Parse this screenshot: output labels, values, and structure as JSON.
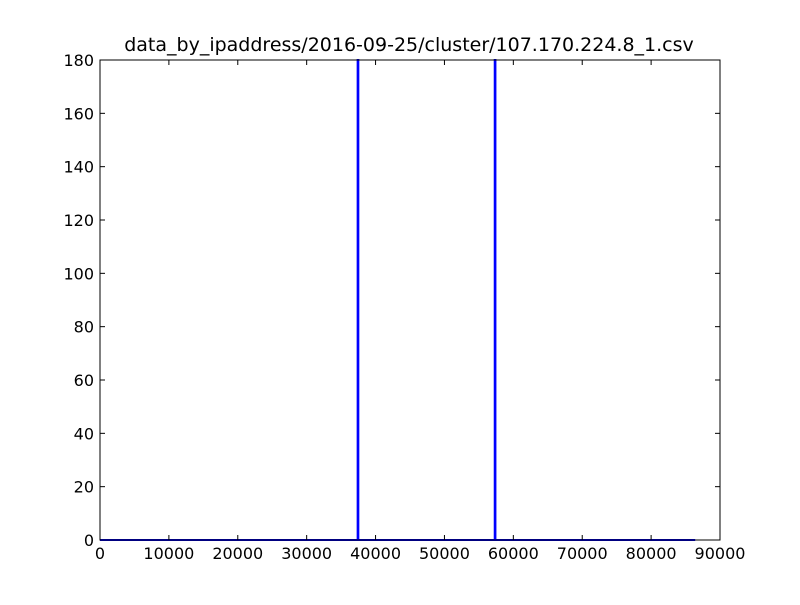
{
  "chart_data": {
    "type": "line",
    "title": "data_by_ipaddress/2016-09-25/cluster/107.170.224.8_1.csv",
    "xlabel": "",
    "ylabel": "",
    "xlim": [
      0,
      90000
    ],
    "ylim": [
      0,
      180
    ],
    "x_ticks": [
      0,
      10000,
      20000,
      30000,
      40000,
      50000,
      60000,
      70000,
      80000,
      90000
    ],
    "y_ticks": [
      0,
      20,
      40,
      60,
      80,
      100,
      120,
      140,
      160,
      180
    ],
    "x_tick_labels": [
      "0",
      "10000",
      "20000",
      "30000",
      "40000",
      "50000",
      "60000",
      "70000",
      "80000",
      "90000"
    ],
    "y_tick_labels": [
      "0",
      "20",
      "40",
      "60",
      "80",
      "100",
      "120",
      "140",
      "160",
      "180"
    ],
    "grid": false,
    "series": [
      {
        "color": "#0000ff",
        "x": [
          0,
          37400,
          37400,
          37500,
          37500,
          57300,
          57300,
          57400,
          57400,
          86400
        ],
        "y": [
          0,
          0,
          180,
          180,
          0,
          0,
          180,
          180,
          0,
          0
        ]
      }
    ]
  }
}
